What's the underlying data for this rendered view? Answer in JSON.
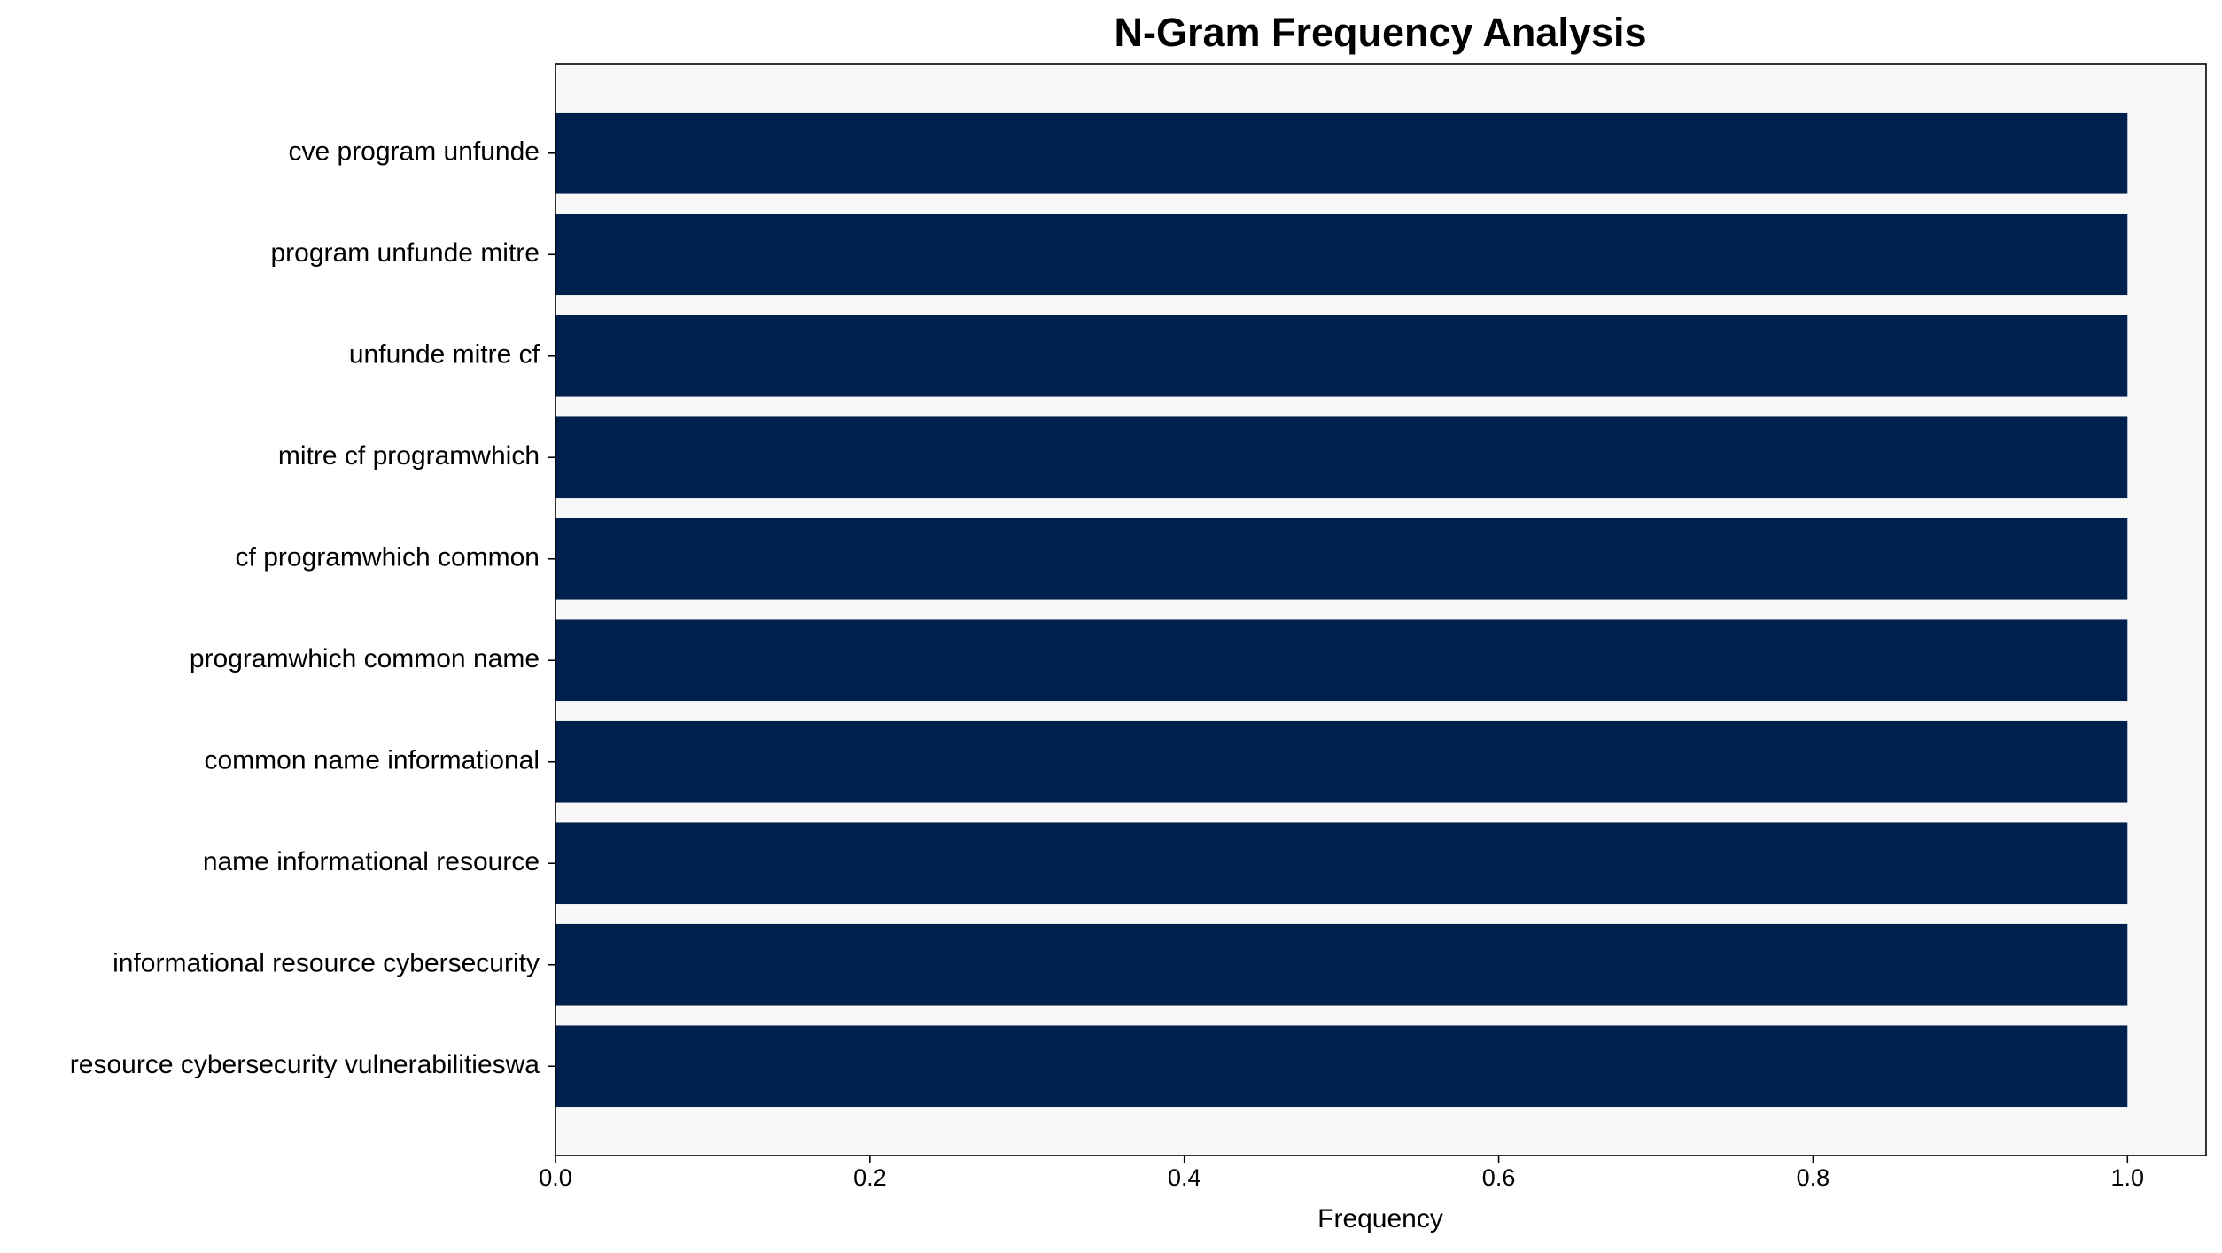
{
  "chart_data": {
    "type": "bar",
    "orientation": "horizontal",
    "title": "N-Gram Frequency Analysis",
    "x_label": "Frequency",
    "categories": [
      "cve program unfunde",
      "program unfunde mitre",
      "unfunde mitre cf",
      "mitre cf programwhich",
      "cf programwhich common",
      "programwhich common name",
      "common name informational",
      "name informational resource",
      "informational resource cybersecurity",
      "resource cybersecurity vulnerabilitieswa"
    ],
    "values": [
      1,
      1,
      1,
      1,
      1,
      1,
      1,
      1,
      1,
      1
    ],
    "color": "#00214d",
    "xlim": [
      0,
      1.05
    ],
    "xticks": [
      {
        "value": 0,
        "label": "0.0"
      },
      0.2,
      0.4,
      0.6,
      0.8,
      {
        "value": 1,
        "label": "1.0"
      }
    ],
    "grid": false
  }
}
